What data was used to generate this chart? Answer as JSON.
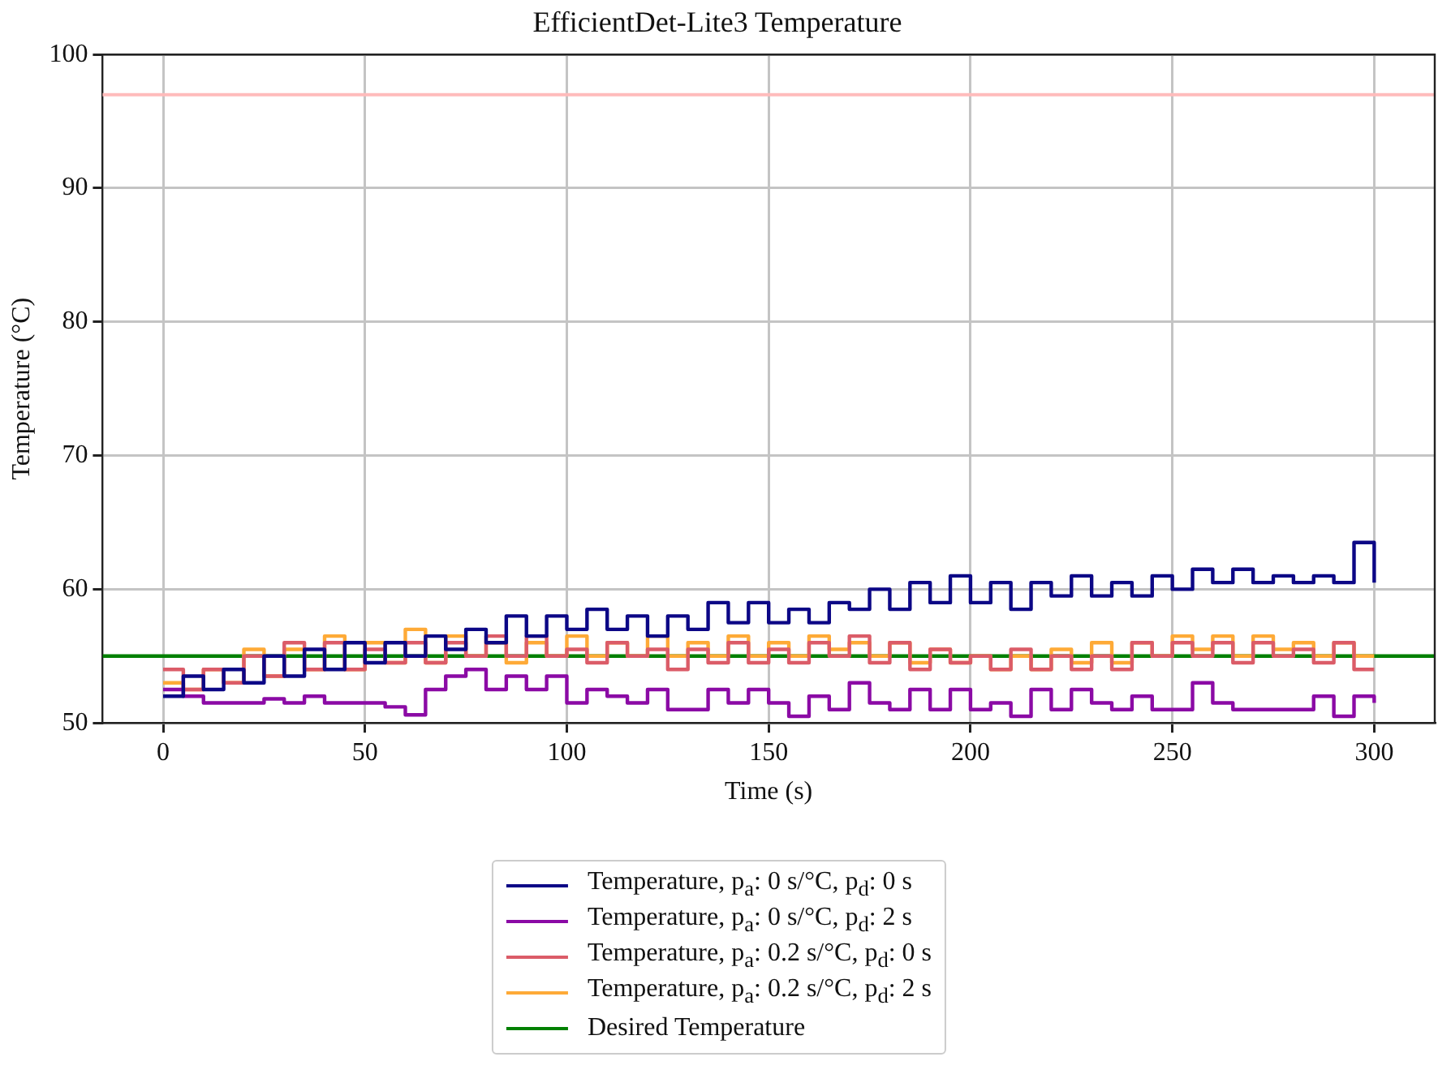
{
  "chart_data": {
    "type": "step",
    "title": "EfficientDet-Lite3 Temperature",
    "xlabel": "Time (s)",
    "ylabel": "Temperature (°C)",
    "x": [
      0,
      5,
      10,
      15,
      20,
      25,
      30,
      35,
      40,
      45,
      50,
      55,
      60,
      65,
      70,
      75,
      80,
      85,
      90,
      95,
      100,
      105,
      110,
      115,
      120,
      125,
      130,
      135,
      140,
      145,
      150,
      155,
      160,
      165,
      170,
      175,
      180,
      185,
      190,
      195,
      200,
      205,
      210,
      215,
      220,
      225,
      230,
      235,
      240,
      245,
      250,
      255,
      260,
      265,
      270,
      275,
      280,
      285,
      290,
      295,
      300
    ],
    "series": [
      {
        "name": "Temperature, p$_{a}$: 0 s/°C, p$_{d}$: 0 s",
        "color": "#0c0786",
        "values": [
          52,
          53.5,
          52.5,
          54,
          53,
          55,
          53.5,
          55.5,
          54,
          56,
          54.5,
          56,
          55,
          56.5,
          55.5,
          57,
          56,
          58,
          56.5,
          58,
          57,
          58.5,
          57,
          58,
          56.5,
          58,
          57,
          59,
          57.5,
          59,
          57.5,
          58.5,
          57.5,
          59,
          58.5,
          60,
          58.5,
          60.5,
          59,
          61,
          59,
          60.5,
          58.5,
          60.5,
          59.5,
          61,
          59.5,
          60.5,
          59.5,
          61,
          60,
          61.5,
          60.5,
          61.5,
          60.5,
          61,
          60.5,
          61,
          60.5,
          63.5,
          60.5
        ]
      },
      {
        "name": "Temperature, p$_{a}$: 0 s/°C, p$_{d}$: 2 s",
        "color": "#8b0aa5",
        "values": [
          52.5,
          52,
          51.5,
          51.5,
          51.5,
          51.8,
          51.5,
          52,
          51.5,
          51.5,
          51.5,
          51.2,
          50.6,
          52.5,
          53.5,
          54,
          52.5,
          53.5,
          52.5,
          53.5,
          51.5,
          52.5,
          52,
          51.5,
          52.5,
          51,
          51,
          52.5,
          51.5,
          52.5,
          51.5,
          50.5,
          52,
          51,
          53,
          51.5,
          51,
          52.5,
          51,
          52.5,
          51,
          51.5,
          50.5,
          52.5,
          51,
          52.5,
          51.5,
          51,
          52,
          51,
          51,
          53,
          51.5,
          51,
          51,
          51,
          51,
          52,
          50.5,
          52,
          51.5
        ]
      },
      {
        "name": "Temperature, p$_{a}$: 0.2 s/°C, p$_{d}$: 0 s",
        "color": "#db5c68",
        "values": [
          54,
          52.5,
          54,
          53,
          55,
          53.5,
          56,
          54,
          56,
          54,
          55.5,
          54.5,
          56,
          54.5,
          56,
          55,
          56.5,
          55,
          56.5,
          55,
          55.5,
          54.5,
          56,
          55,
          55.5,
          54,
          55.5,
          54.5,
          56,
          54.5,
          55.5,
          54.5,
          56,
          55,
          56.5,
          54.5,
          56,
          54,
          55.5,
          54.5,
          55,
          54,
          55.5,
          54,
          55,
          54,
          55,
          54,
          56,
          55,
          56,
          55,
          56,
          54.5,
          56,
          55,
          55.5,
          54.5,
          56,
          54,
          54
        ]
      },
      {
        "name": "Temperature, p$_{a}$: 0.2 s/°C, p$_{d}$: 2 s",
        "color": "#feaa37",
        "values": [
          53,
          52.5,
          54,
          53,
          55.5,
          53.5,
          55.5,
          54,
          56.5,
          54,
          56,
          54.5,
          57,
          54.5,
          56.5,
          55,
          56,
          54.5,
          56,
          55,
          56.5,
          55,
          56,
          55,
          56.5,
          55,
          56,
          55,
          56.5,
          55,
          56,
          55,
          56.5,
          55.5,
          56,
          55,
          56,
          54.5,
          55.5,
          54.5,
          55,
          54,
          55,
          54,
          55.5,
          54.5,
          56,
          54.5,
          56,
          55,
          56.5,
          55.5,
          56.5,
          55,
          56.5,
          55.5,
          56,
          55,
          56,
          55,
          55
        ]
      },
      {
        "name": "Desired Temperature",
        "type": "line",
        "color": "#008000",
        "x": [
          -15,
          315
        ],
        "values": [
          55,
          55
        ]
      }
    ],
    "xlim": [
      -15,
      315
    ],
    "ylim": [
      50,
      100
    ],
    "xticks": [
      0,
      50,
      100,
      150,
      200,
      250,
      300
    ],
    "yticks": [
      50,
      60,
      70,
      80,
      90,
      100
    ],
    "grid": true,
    "legend": "bottom",
    "ref_lines": [
      {
        "axis": "y",
        "value": 97,
        "color": "#ffbbbb"
      }
    ]
  }
}
